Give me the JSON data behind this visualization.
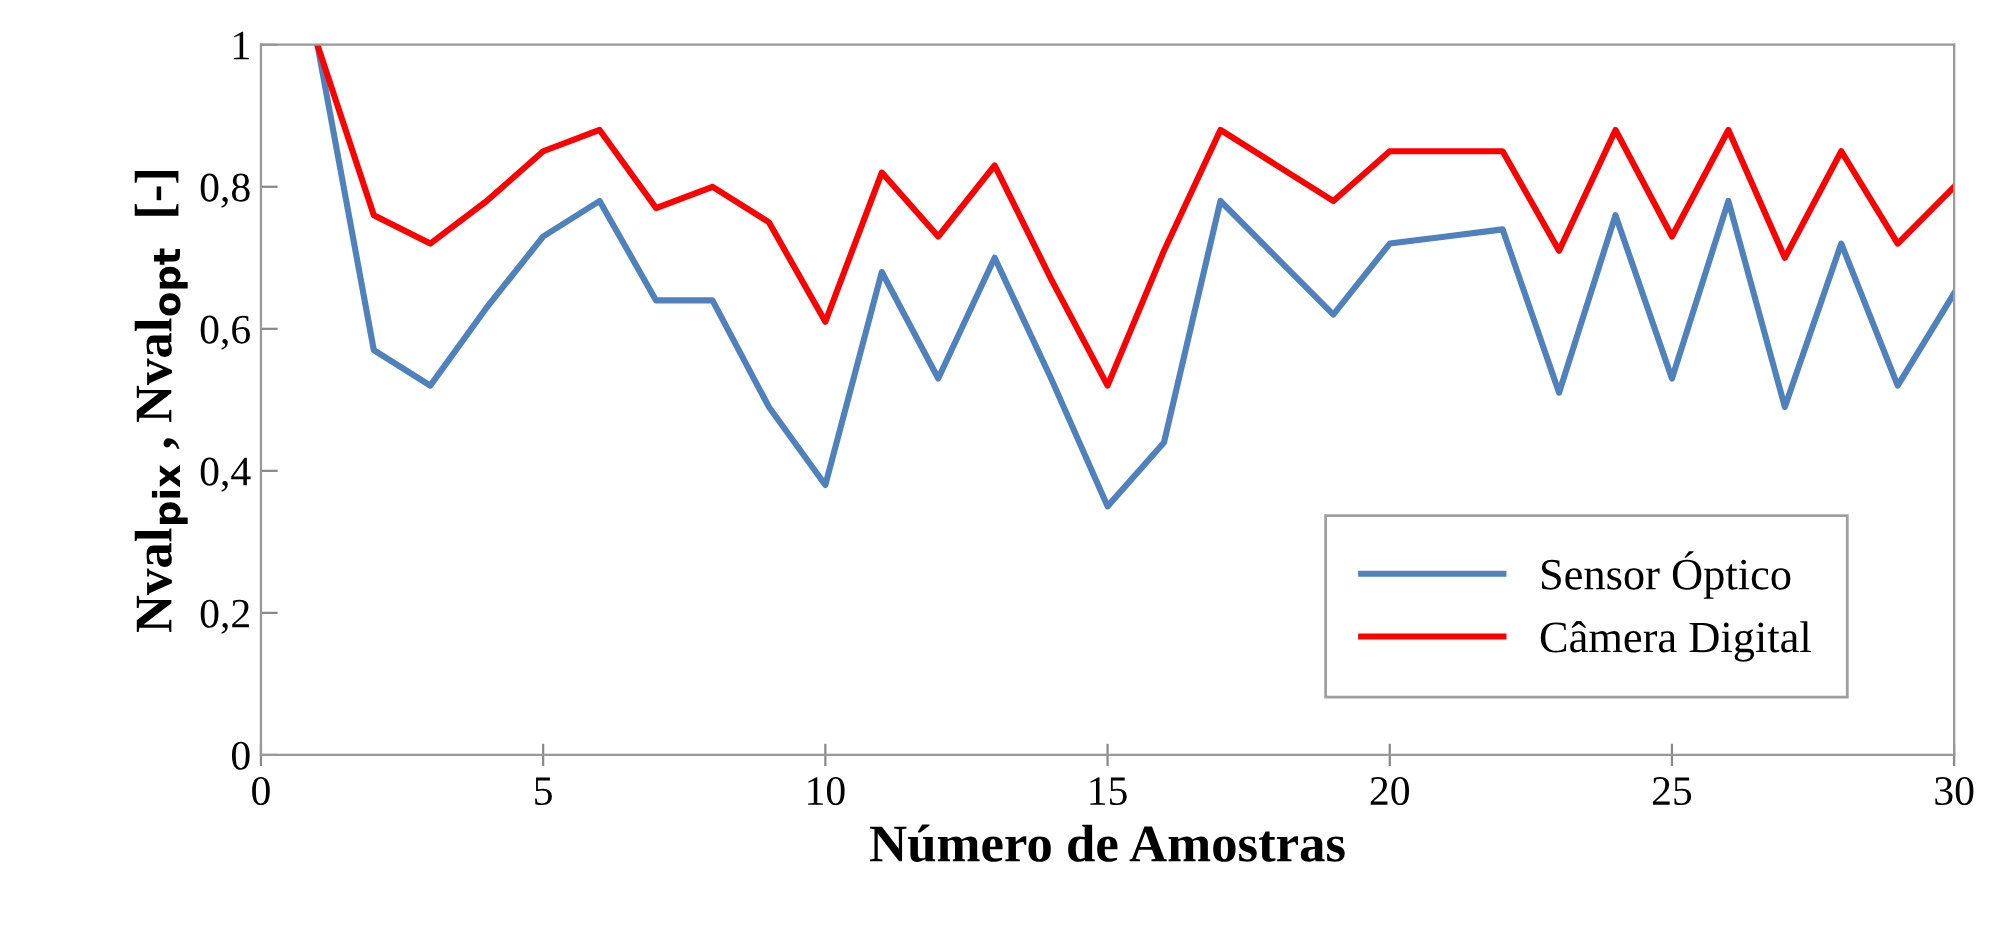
{
  "chart_data": {
    "type": "line",
    "xlabel": "Número de Amostras",
    "ylabel": "Nval$_{pix}$ , Nval$_{opt}$  [-]",
    "x": [
      1,
      2,
      3,
      4,
      5,
      6,
      7,
      8,
      9,
      10,
      11,
      12,
      13,
      14,
      15,
      16,
      17,
      18,
      19,
      20,
      21,
      22,
      23,
      24,
      25,
      26,
      27,
      28,
      29,
      30
    ],
    "series": [
      {
        "name": "Sensor Óptico",
        "color": "#4f81bd",
        "values": [
          1.0,
          0.57,
          0.52,
          0.63,
          0.73,
          0.78,
          0.64,
          0.64,
          0.49,
          0.38,
          0.68,
          0.53,
          0.7,
          0.53,
          0.35,
          0.44,
          0.78,
          0.7,
          0.62,
          0.72,
          0.73,
          0.74,
          0.51,
          0.76,
          0.53,
          0.78,
          0.49,
          0.72,
          0.52,
          0.65
        ]
      },
      {
        "name": "Câmera Digital",
        "color": "#ff0000",
        "values": [
          1.0,
          0.76,
          0.72,
          0.78,
          0.85,
          0.88,
          0.77,
          0.8,
          0.75,
          0.61,
          0.82,
          0.73,
          0.83,
          0.67,
          0.52,
          0.71,
          0.88,
          0.83,
          0.78,
          0.85,
          0.85,
          0.85,
          0.71,
          0.88,
          0.73,
          0.88,
          0.7,
          0.85,
          0.72,
          0.8
        ]
      }
    ],
    "xlim": [
      0,
      30
    ],
    "xticks": [
      0,
      5,
      10,
      15,
      20,
      25,
      30
    ],
    "ylim": [
      0,
      1
    ],
    "yticks": [
      0,
      {
        "value": 0.2,
        "label": "0,2"
      },
      {
        "value": 0.4,
        "label": "0,4"
      },
      {
        "value": 0.6,
        "label": "0,6"
      },
      {
        "value": 0.8,
        "label": "0,8"
      },
      1
    ],
    "grid": false,
    "legend": "bottom right",
    "marker": "none",
    "line_style": "solid"
  }
}
